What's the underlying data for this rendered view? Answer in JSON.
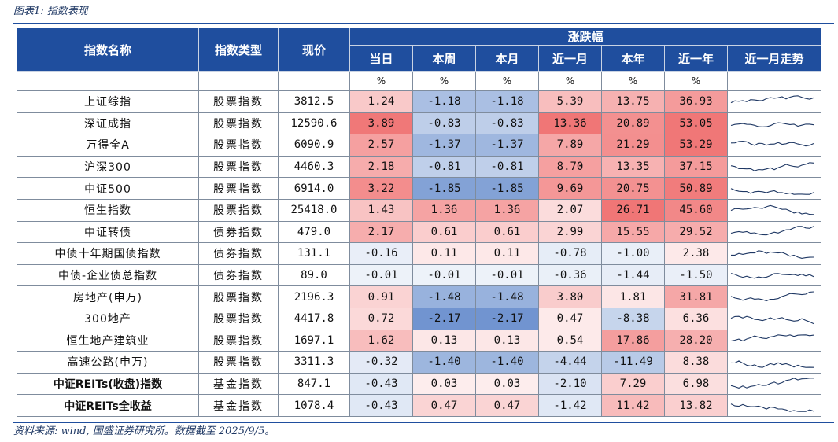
{
  "caption": "图表1: 指数表现",
  "source": "资料来源: wind, 国盛证券研究所。数据截至 2025/9/5。",
  "headers": {
    "name": "指数名称",
    "type": "指数类型",
    "price": "现价",
    "group": "涨跌幅",
    "day": "当日",
    "week": "本周",
    "month": "本月",
    "onemonth": "近一月",
    "ytd": "本年",
    "oneyear": "近一年",
    "trend": "近一月走势",
    "pct": "%"
  },
  "colors": {
    "header": "#1f4e9e",
    "up_strong": "#f07575",
    "up_light": "#fde3e3",
    "down_strong": "#6f93cf",
    "down_light": "#dfe7f5",
    "spark": "#1f3864"
  },
  "rows": [
    {
      "name": "上证综指",
      "type": "股票指数",
      "price": "3812.5",
      "vals": [
        "1.24",
        "-1.18",
        "-1.18",
        "5.39",
        "13.75",
        "36.93"
      ],
      "bold": false
    },
    {
      "name": "深证成指",
      "type": "股票指数",
      "price": "12590.6",
      "vals": [
        "3.89",
        "-0.83",
        "-0.83",
        "13.36",
        "20.89",
        "53.05"
      ],
      "bold": false
    },
    {
      "name": "万得全A",
      "type": "股票指数",
      "price": "6090.9",
      "vals": [
        "2.57",
        "-1.37",
        "-1.37",
        "7.89",
        "21.29",
        "53.29"
      ],
      "bold": false
    },
    {
      "name": "沪深300",
      "type": "股票指数",
      "price": "4460.3",
      "vals": [
        "2.18",
        "-0.81",
        "-0.81",
        "8.70",
        "13.35",
        "37.15"
      ],
      "bold": false
    },
    {
      "name": "中证500",
      "type": "股票指数",
      "price": "6914.0",
      "vals": [
        "3.22",
        "-1.85",
        "-1.85",
        "9.69",
        "20.75",
        "50.89"
      ],
      "bold": false
    },
    {
      "name": "恒生指数",
      "type": "股票指数",
      "price": "25418.0",
      "vals": [
        "1.43",
        "1.36",
        "1.36",
        "2.07",
        "26.71",
        "45.60"
      ],
      "bold": false
    },
    {
      "name": "中证转债",
      "type": "债券指数",
      "price": "479.0",
      "vals": [
        "2.17",
        "0.61",
        "0.61",
        "2.99",
        "15.55",
        "29.52"
      ],
      "bold": false
    },
    {
      "name": "中债十年期国债指数",
      "type": "债券指数",
      "price": "131.1",
      "vals": [
        "-0.16",
        "0.11",
        "0.11",
        "-0.78",
        "-1.00",
        "2.38"
      ],
      "bold": false
    },
    {
      "name": "中债-企业债总指数",
      "type": "债券指数",
      "price": "89.0",
      "vals": [
        "-0.01",
        "-0.01",
        "-0.01",
        "-0.36",
        "-1.44",
        "-1.50"
      ],
      "bold": false
    },
    {
      "name": "房地产(申万)",
      "type": "股票指数",
      "price": "2196.3",
      "vals": [
        "0.91",
        "-1.48",
        "-1.48",
        "3.80",
        "1.81",
        "31.81"
      ],
      "bold": false
    },
    {
      "name": "300地产",
      "type": "股票指数",
      "price": "4417.8",
      "vals": [
        "0.72",
        "-2.17",
        "-2.17",
        "0.47",
        "-8.38",
        "6.36"
      ],
      "bold": false
    },
    {
      "name": "恒生地产建筑业",
      "type": "股票指数",
      "price": "1697.1",
      "vals": [
        "1.62",
        "0.13",
        "0.13",
        "0.54",
        "17.86",
        "28.20"
      ],
      "bold": false
    },
    {
      "name": "高速公路(申万)",
      "type": "股票指数",
      "price": "3311.3",
      "vals": [
        "-0.32",
        "-1.40",
        "-1.40",
        "-4.44",
        "-11.49",
        "8.38"
      ],
      "bold": false
    },
    {
      "name": "中证REITs(收盘)指数",
      "type": "基金指数",
      "price": "847.1",
      "vals": [
        "-0.43",
        "0.03",
        "0.03",
        "-2.10",
        "7.29",
        "6.98"
      ],
      "bold": true
    },
    {
      "name": "中证REITs全收益",
      "type": "基金指数",
      "price": "1078.4",
      "vals": [
        "-0.43",
        "0.47",
        "0.47",
        "-1.42",
        "11.42",
        "13.82"
      ],
      "bold": true
    }
  ]
}
